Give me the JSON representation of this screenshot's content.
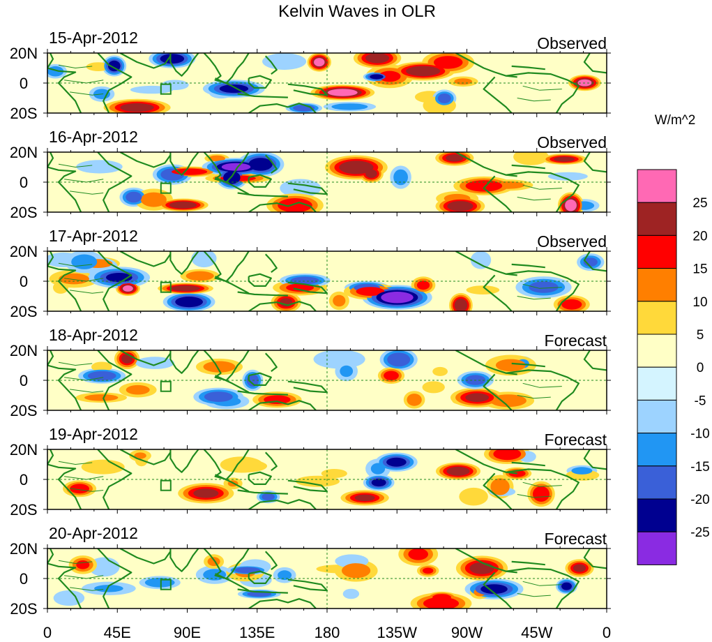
{
  "title": "Kelvin Waves in OLR",
  "units_label": "W/m^2",
  "lat_labels": [
    "20N",
    "0",
    "20S"
  ],
  "lon_labels": [
    "0",
    "45E",
    "90E",
    "135E",
    "180",
    "135W",
    "90W",
    "45W",
    "0"
  ],
  "panels": [
    {
      "date": "15-Apr-2012",
      "kind": "Observed"
    },
    {
      "date": "16-Apr-2012",
      "kind": "Observed"
    },
    {
      "date": "17-Apr-2012",
      "kind": "Observed"
    },
    {
      "date": "18-Apr-2012",
      "kind": "Forecast"
    },
    {
      "date": "19-Apr-2012",
      "kind": "Forecast"
    },
    {
      "date": "20-Apr-2012",
      "kind": "Forecast"
    }
  ],
  "colorbar": {
    "labels": [
      "25",
      "20",
      "15",
      "10",
      "5",
      "0",
      "-5",
      "-10",
      "-15",
      "-20",
      "-25"
    ],
    "colors": [
      "#ff69b4",
      "#9e2323",
      "#ff0000",
      "#ff7f00",
      "#ffd93a",
      "#ffffc6",
      "#d4f4ff",
      "#9dd3ff",
      "#2196f3",
      "#3a60d8",
      "#000090",
      "#8a2be2"
    ]
  },
  "colors": {
    "coast": "#1f8a1f",
    "equator": "#1f8a1f"
  }
}
